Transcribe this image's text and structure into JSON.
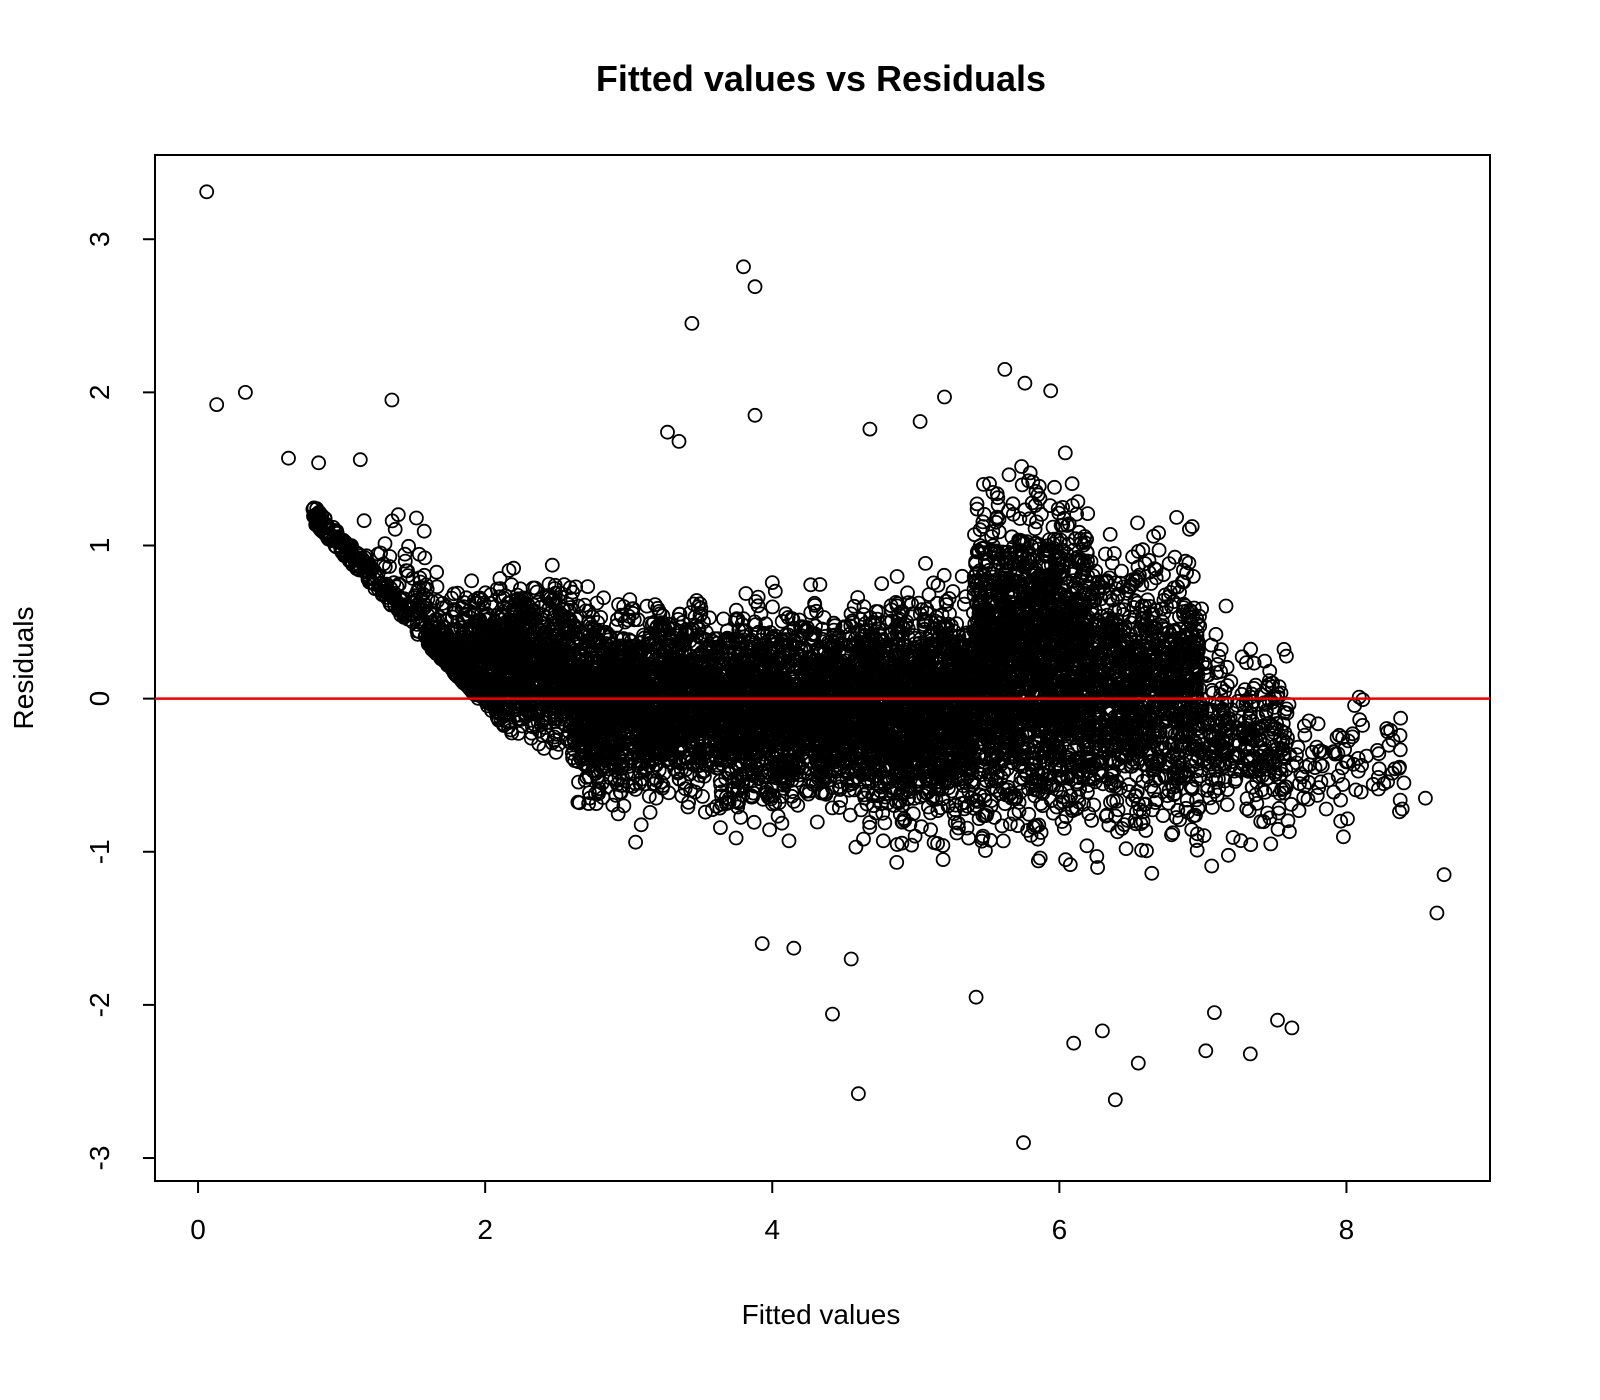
{
  "chart_data": {
    "type": "scatter",
    "title": "Fitted values vs Residuals",
    "xlabel": "Fitted values",
    "ylabel": "Residuals",
    "xlim": [
      -0.3,
      9.0
    ],
    "ylim": [
      -3.15,
      3.55
    ],
    "x_ticks": [
      0,
      2,
      4,
      6,
      8
    ],
    "y_ticks": [
      -3,
      -2,
      -1,
      0,
      1,
      2,
      3
    ],
    "grid": false,
    "legend": "none",
    "marker": "open-circle",
    "point_color": "#000000",
    "reference_line": {
      "y": 0,
      "color": "#ee0000"
    },
    "outlier_points": [
      {
        "x": 0.06,
        "y": 3.31
      },
      {
        "x": 0.13,
        "y": 1.92
      },
      {
        "x": 0.33,
        "y": 2.0
      },
      {
        "x": 0.63,
        "y": 1.57
      },
      {
        "x": 0.84,
        "y": 1.54
      },
      {
        "x": 1.13,
        "y": 1.56
      },
      {
        "x": 1.35,
        "y": 1.95
      },
      {
        "x": 3.44,
        "y": 2.45
      },
      {
        "x": 3.8,
        "y": 2.82
      },
      {
        "x": 3.88,
        "y": 2.69
      },
      {
        "x": 3.88,
        "y": 1.85
      },
      {
        "x": 3.27,
        "y": 1.74
      },
      {
        "x": 3.35,
        "y": 1.68
      },
      {
        "x": 4.68,
        "y": 1.76
      },
      {
        "x": 5.03,
        "y": 1.81
      },
      {
        "x": 5.2,
        "y": 1.97
      },
      {
        "x": 5.62,
        "y": 2.15
      },
      {
        "x": 5.76,
        "y": 2.06
      },
      {
        "x": 5.94,
        "y": 2.01
      },
      {
        "x": 4.42,
        "y": -2.06
      },
      {
        "x": 4.6,
        "y": -2.58
      },
      {
        "x": 5.75,
        "y": -2.9
      },
      {
        "x": 6.39,
        "y": -2.62
      },
      {
        "x": 6.55,
        "y": -2.38
      },
      {
        "x": 7.02,
        "y": -2.3
      },
      {
        "x": 7.33,
        "y": -2.32
      },
      {
        "x": 7.62,
        "y": -2.15
      },
      {
        "x": 7.52,
        "y": -2.1
      },
      {
        "x": 8.63,
        "y": -1.4
      },
      {
        "x": 8.68,
        "y": -1.15
      },
      {
        "x": 8.55,
        "y": -0.65
      },
      {
        "x": 8.4,
        "y": -0.55
      },
      {
        "x": 3.93,
        "y": -1.6
      },
      {
        "x": 4.15,
        "y": -1.63
      },
      {
        "x": 4.55,
        "y": -1.7
      },
      {
        "x": 5.42,
        "y": -1.95
      },
      {
        "x": 6.1,
        "y": -2.25
      },
      {
        "x": 6.3,
        "y": -2.17
      },
      {
        "x": 7.08,
        "y": -2.05
      }
    ],
    "clusters": [
      {
        "x_from": 0.8,
        "x_to": 1.6,
        "y_low": -0.1,
        "y_high": 1.3,
        "count": 260
      },
      {
        "x_from": 1.6,
        "x_to": 2.6,
        "y_low": -0.55,
        "y_high": 1.0,
        "count": 1300
      },
      {
        "x_from": 2.6,
        "x_to": 3.6,
        "y_low": -0.95,
        "y_high": 0.9,
        "count": 1700
      },
      {
        "x_from": 3.6,
        "x_to": 4.6,
        "y_low": -1.05,
        "y_high": 0.9,
        "count": 1700
      },
      {
        "x_from": 4.6,
        "x_to": 5.4,
        "y_low": -1.15,
        "y_high": 1.0,
        "count": 1500
      },
      {
        "x_from": 5.4,
        "x_to": 6.2,
        "y_low": -1.3,
        "y_high": 1.75,
        "count": 1900
      },
      {
        "x_from": 6.2,
        "x_to": 7.0,
        "y_low": -1.3,
        "y_high": 1.4,
        "count": 1100
      },
      {
        "x_from": 7.0,
        "x_to": 7.6,
        "y_low": -1.2,
        "y_high": 0.7,
        "count": 300
      },
      {
        "x_from": 7.6,
        "x_to": 8.4,
        "y_low": -1.1,
        "y_high": 0.25,
        "count": 90
      }
    ]
  }
}
